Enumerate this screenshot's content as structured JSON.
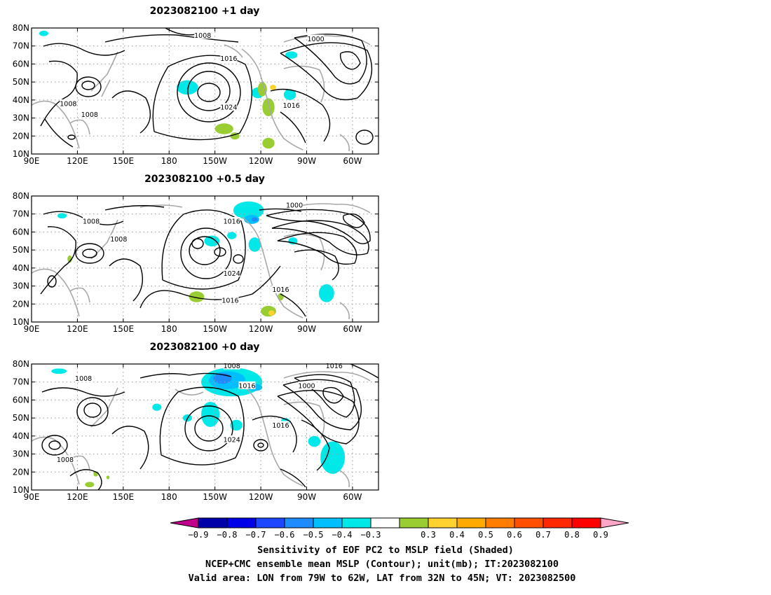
{
  "panels": [
    {
      "title": "2023082100 +1 day",
      "contour_labels": [
        {
          "text": "1008",
          "lon": 202,
          "lat": 76
        },
        {
          "text": "1000",
          "lon": 276,
          "lat": 74
        },
        {
          "text": "1016",
          "lon": 219,
          "lat": 63
        },
        {
          "text": "1008",
          "lon": 114,
          "lat": 38
        },
        {
          "text": "1008",
          "lon": 128,
          "lat": 32
        },
        {
          "text": "1024",
          "lon": 219,
          "lat": 36
        },
        {
          "text": "1016",
          "lon": 260,
          "lat": 37
        }
      ],
      "shading": [
        {
          "value": -0.35,
          "lon": 98,
          "lat": 77,
          "rx": 3,
          "ry": 1.5
        },
        {
          "value": -0.35,
          "lon": 192,
          "lat": 47,
          "rx": 7,
          "ry": 4
        },
        {
          "value": -0.35,
          "lon": 238,
          "lat": 44,
          "rx": 4,
          "ry": 3
        },
        {
          "value": -0.35,
          "lon": 259,
          "lat": 43,
          "rx": 4,
          "ry": 3
        },
        {
          "value": -0.35,
          "lon": 260,
          "lat": 65,
          "rx": 4,
          "ry": 2
        },
        {
          "value": 0.35,
          "lon": 241,
          "lat": 46,
          "rx": 3,
          "ry": 4
        },
        {
          "value": 0.35,
          "lon": 245,
          "lat": 36,
          "rx": 4,
          "ry": 5
        },
        {
          "value": 0.35,
          "lon": 216,
          "lat": 24,
          "rx": 6,
          "ry": 3
        },
        {
          "value": 0.35,
          "lon": 223,
          "lat": 20,
          "rx": 3,
          "ry": 2
        },
        {
          "value": 0.45,
          "lon": 248,
          "lat": 47,
          "rx": 2,
          "ry": 1.5
        },
        {
          "value": 0.35,
          "lon": 245,
          "lat": 16,
          "rx": 4,
          "ry": 3
        }
      ]
    },
    {
      "title": "2023082100 +0.5 day",
      "contour_labels": [
        {
          "text": "1000",
          "lon": 262,
          "lat": 75
        },
        {
          "text": "1008",
          "lon": 129,
          "lat": 66
        },
        {
          "text": "1016",
          "lon": 221,
          "lat": 66
        },
        {
          "text": "1008",
          "lon": 147,
          "lat": 56
        },
        {
          "text": "1024",
          "lon": 221,
          "lat": 37
        },
        {
          "text": "1016",
          "lon": 253,
          "lat": 28
        },
        {
          "text": "1016",
          "lon": 220,
          "lat": 22
        }
      ],
      "shading": [
        {
          "value": -0.35,
          "lon": 232,
          "lat": 72,
          "rx": 10,
          "ry": 5
        },
        {
          "value": -0.45,
          "lon": 234,
          "lat": 67,
          "rx": 5,
          "ry": 2.5
        },
        {
          "value": -0.55,
          "lon": 236,
          "lat": 67,
          "rx": 2,
          "ry": 1.2
        },
        {
          "value": -0.35,
          "lon": 208,
          "lat": 55,
          "rx": 5,
          "ry": 3
        },
        {
          "value": -0.35,
          "lon": 236,
          "lat": 53,
          "rx": 4,
          "ry": 4
        },
        {
          "value": -0.35,
          "lon": 221,
          "lat": 58,
          "rx": 3,
          "ry": 2
        },
        {
          "value": -0.35,
          "lon": 283,
          "lat": 26,
          "rx": 5,
          "ry": 5
        },
        {
          "value": -0.35,
          "lon": 261,
          "lat": 55,
          "rx": 3,
          "ry": 2
        },
        {
          "value": -0.35,
          "lon": 110,
          "lat": 69,
          "rx": 3,
          "ry": 1.5
        },
        {
          "value": 0.35,
          "lon": 198,
          "lat": 24,
          "rx": 5,
          "ry": 3
        },
        {
          "value": 0.35,
          "lon": 245,
          "lat": 16,
          "rx": 5,
          "ry": 3
        },
        {
          "value": 0.45,
          "lon": 247,
          "lat": 15,
          "rx": 2,
          "ry": 1.5
        },
        {
          "value": 0.35,
          "lon": 253,
          "lat": 24,
          "rx": 2,
          "ry": 2
        },
        {
          "value": 0.35,
          "lon": 115,
          "lat": 45,
          "rx": 1.5,
          "ry": 2
        }
      ]
    },
    {
      "title": "2023082100 +0 day",
      "contour_labels": [
        {
          "text": "1008",
          "lon": 221,
          "lat": 79
        },
        {
          "text": "1016",
          "lon": 288,
          "lat": 79
        },
        {
          "text": "1008",
          "lon": 124,
          "lat": 72
        },
        {
          "text": "1016",
          "lon": 231,
          "lat": 68
        },
        {
          "text": "1000",
          "lon": 270,
          "lat": 68
        },
        {
          "text": "1016",
          "lon": 253,
          "lat": 46
        },
        {
          "text": "1024",
          "lon": 221,
          "lat": 38
        },
        {
          "text": "1008",
          "lon": 112,
          "lat": 27
        }
      ],
      "shading": [
        {
          "value": -0.35,
          "lon": 221,
          "lat": 70,
          "rx": 20,
          "ry": 8
        },
        {
          "value": -0.45,
          "lon": 218,
          "lat": 71,
          "rx": 12,
          "ry": 5
        },
        {
          "value": -0.55,
          "lon": 215,
          "lat": 72,
          "rx": 6,
          "ry": 3
        },
        {
          "value": -0.45,
          "lon": 236,
          "lat": 67,
          "rx": 5,
          "ry": 2
        },
        {
          "value": -0.35,
          "lon": 207,
          "lat": 52,
          "rx": 6,
          "ry": 7
        },
        {
          "value": -0.35,
          "lon": 224,
          "lat": 46,
          "rx": 4,
          "ry": 3
        },
        {
          "value": -0.35,
          "lon": 287,
          "lat": 28,
          "rx": 8,
          "ry": 9
        },
        {
          "value": -0.35,
          "lon": 275,
          "lat": 37,
          "rx": 4,
          "ry": 3
        },
        {
          "value": -0.35,
          "lon": 256,
          "lat": 48,
          "rx": 3,
          "ry": 2
        },
        {
          "value": -0.35,
          "lon": 192,
          "lat": 50,
          "rx": 3,
          "ry": 2
        },
        {
          "value": -0.35,
          "lon": 172,
          "lat": 56,
          "rx": 3,
          "ry": 2
        },
        {
          "value": -0.35,
          "lon": 108,
          "lat": 76,
          "rx": 5,
          "ry": 1.5
        },
        {
          "value": 0.35,
          "lon": 128,
          "lat": 13,
          "rx": 3,
          "ry": 1.5
        },
        {
          "value": 0.35,
          "lon": 132,
          "lat": 19,
          "rx": 1.5,
          "ry": 1.5
        },
        {
          "value": 0.35,
          "lon": 140,
          "lat": 17,
          "rx": 1,
          "ry": 1
        }
      ]
    }
  ],
  "axes": {
    "x_ticks": [
      {
        "lon": 90,
        "label": "90E"
      },
      {
        "lon": 120,
        "label": "120E"
      },
      {
        "lon": 150,
        "label": "150E"
      },
      {
        "lon": 180,
        "label": "180"
      },
      {
        "lon": 210,
        "label": "150W"
      },
      {
        "lon": 240,
        "label": "120W"
      },
      {
        "lon": 270,
        "label": "90W"
      },
      {
        "lon": 300,
        "label": "60W"
      }
    ],
    "y_ticks": [
      {
        "lat": 10,
        "label": "10N"
      },
      {
        "lat": 20,
        "label": "20N"
      },
      {
        "lat": 30,
        "label": "30N"
      },
      {
        "lat": 40,
        "label": "40N"
      },
      {
        "lat": 50,
        "label": "50N"
      },
      {
        "lat": 60,
        "label": "60N"
      },
      {
        "lat": 70,
        "label": "70N"
      },
      {
        "lat": 80,
        "label": "80N"
      }
    ],
    "lon_range": [
      90,
      317
    ],
    "lat_range": [
      10,
      80
    ]
  },
  "colorbar": {
    "colors": [
      "#c0008a",
      "#0000a8",
      "#0000e8",
      "#1e46ff",
      "#1e8cff",
      "#00bfff",
      "#00e8e8",
      "#ffffff",
      "#9acd32",
      "#ffd230",
      "#ffaa00",
      "#ff7d00",
      "#ff5000",
      "#ff2800",
      "#ff0000",
      "#ffa5c8"
    ],
    "labels": [
      "-0.9",
      "-0.8",
      "-0.7",
      "-0.6",
      "-0.5",
      "-0.4",
      "-0.3",
      "0.3",
      "0.4",
      "0.5",
      "0.6",
      "0.7",
      "0.8",
      "0.9"
    ]
  },
  "caption": {
    "line1": "Sensitivity of EOF PC2 to MSLP field (Shaded)",
    "line2": "NCEP+CMC ensemble mean MSLP (Contour); unit(mb); IT:2023082100",
    "line3": "Valid area: LON from 79W to 62W, LAT from 32N to 45N; VT: 2023082500"
  }
}
